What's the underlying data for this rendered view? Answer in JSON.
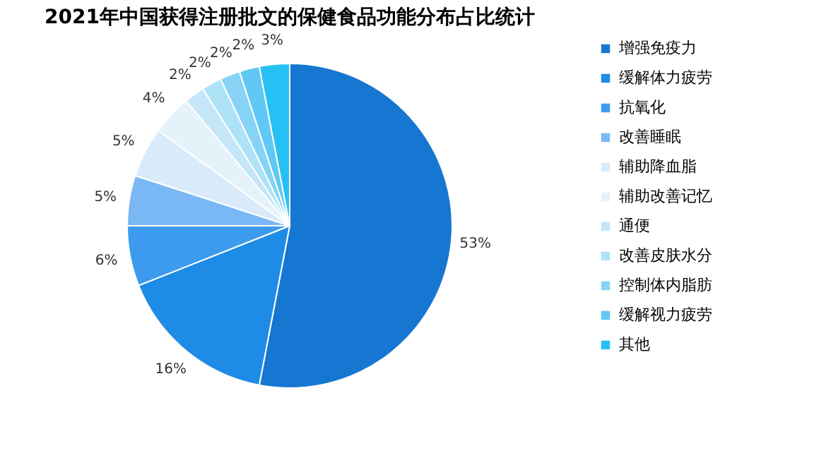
{
  "chart_data": {
    "type": "pie",
    "title": "2021年中国获得注册批文的保健食品功能分布占比统计",
    "categories": [
      "增强免疫力",
      "缓解体力疲劳",
      "抗氧化",
      "改善睡眠",
      "辅助降血脂",
      "辅助改善记忆",
      "通便",
      "改善皮肤水分",
      "控制体内脂肪",
      "缓解视力疲劳",
      "其他"
    ],
    "values": [
      53,
      16,
      6,
      5,
      5,
      4,
      2,
      2,
      2,
      2,
      3
    ],
    "value_labels": [
      "53%",
      "16%",
      "6%",
      "5%",
      "5%",
      "4%",
      "2%",
      "2%",
      "2%",
      "2%",
      "3%"
    ],
    "colors": [
      "#1677d2",
      "#1e8ce6",
      "#3d9bef",
      "#7ab8f5",
      "#d9ebfb",
      "#e6f2fa",
      "#c4e6f8",
      "#aee2f7",
      "#86d3f5",
      "#5fc8f5",
      "#27c0f5"
    ],
    "legend": "right"
  }
}
